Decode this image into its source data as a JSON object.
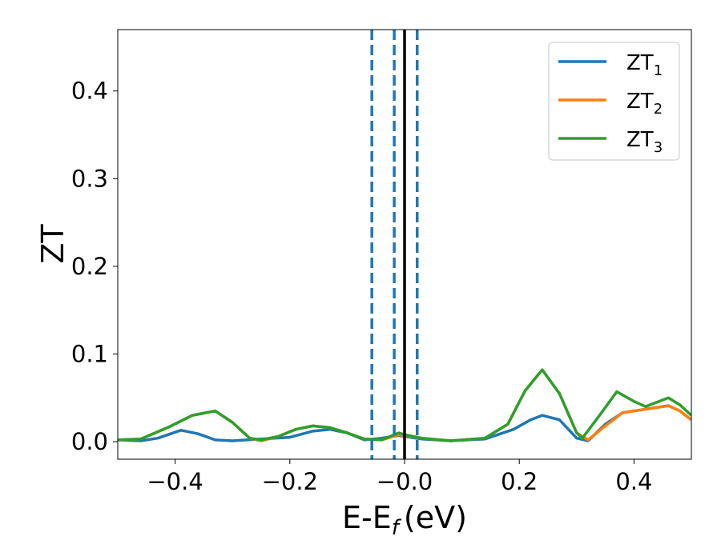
{
  "chart_data": {
    "type": "line",
    "xlabel": "E-E",
    "xlabel_sub": "f",
    "xlabel_unit": "(eV)",
    "ylabel": "ZT",
    "xlim": [
      -0.5,
      0.5
    ],
    "ylim": [
      -0.02,
      0.47
    ],
    "x_ticks": [
      -0.4,
      -0.2,
      0.0,
      0.2,
      0.4
    ],
    "x_tick_labels": [
      "−0.4",
      "−0.2",
      "−0.0",
      "0.2",
      "0.4"
    ],
    "y_ticks": [
      0.0,
      0.1,
      0.2,
      0.3,
      0.4
    ],
    "y_tick_labels": [
      "0.0",
      "0.1",
      "0.2",
      "0.3",
      "0.4"
    ],
    "grid": false,
    "legend_position": "top-right",
    "vertical_lines": [
      {
        "x": -0.057,
        "style": "dashed",
        "color": "#1f77b4"
      },
      {
        "x": -0.018,
        "style": "dashed",
        "color": "#1f77b4"
      },
      {
        "x": 0.0,
        "style": "solid",
        "color": "#000000"
      },
      {
        "x": 0.022,
        "style": "dashed",
        "color": "#1f77b4"
      }
    ],
    "series": [
      {
        "name": "ZT",
        "sub": "1",
        "color": "#1f77b4",
        "x": [
          -0.5,
          -0.46,
          -0.43,
          -0.39,
          -0.36,
          -0.33,
          -0.3,
          -0.25,
          -0.2,
          -0.16,
          -0.13,
          -0.1,
          -0.07,
          -0.04,
          -0.01,
          0.0,
          0.03,
          0.08,
          0.14,
          0.19,
          0.22,
          0.24,
          0.27,
          0.3,
          0.32,
          0.35,
          0.38,
          0.4,
          0.43,
          0.46,
          0.48,
          0.5
        ],
        "y": [
          0.002,
          0.001,
          0.004,
          0.013,
          0.009,
          0.002,
          0.001,
          0.003,
          0.005,
          0.012,
          0.014,
          0.01,
          0.002,
          0.004,
          0.007,
          0.006,
          0.003,
          0.001,
          0.003,
          0.014,
          0.025,
          0.03,
          0.025,
          0.004,
          0.001,
          0.02,
          0.033,
          0.035,
          0.038,
          0.041,
          0.035,
          0.025
        ]
      },
      {
        "name": "ZT",
        "sub": "2",
        "color": "#ff7f0e",
        "x": [
          -0.5,
          -0.46,
          -0.41,
          -0.37,
          -0.33,
          -0.3,
          -0.27,
          -0.25,
          -0.22,
          -0.19,
          -0.16,
          -0.13,
          -0.1,
          -0.07,
          -0.04,
          -0.01,
          0.0,
          0.03,
          0.08,
          0.14,
          0.18,
          0.21,
          0.24,
          0.27,
          0.3,
          0.32,
          0.35,
          0.38,
          0.4,
          0.43,
          0.46,
          0.48,
          0.5
        ],
        "y": [
          0.002,
          0.003,
          0.017,
          0.03,
          0.035,
          0.022,
          0.004,
          0.001,
          0.006,
          0.014,
          0.018,
          0.016,
          0.01,
          0.003,
          0.002,
          0.008,
          0.007,
          0.004,
          0.001,
          0.004,
          0.02,
          0.058,
          0.082,
          0.055,
          0.01,
          0.002,
          0.018,
          0.033,
          0.035,
          0.038,
          0.041,
          0.035,
          0.025
        ]
      },
      {
        "name": "ZT",
        "sub": "3",
        "color": "#2ca02c",
        "x": [
          -0.5,
          -0.46,
          -0.41,
          -0.37,
          -0.33,
          -0.3,
          -0.27,
          -0.25,
          -0.22,
          -0.19,
          -0.16,
          -0.13,
          -0.1,
          -0.07,
          -0.04,
          -0.01,
          0.0,
          0.03,
          0.08,
          0.14,
          0.18,
          0.21,
          0.24,
          0.27,
          0.3,
          0.31,
          0.34,
          0.37,
          0.4,
          0.42,
          0.44,
          0.46,
          0.48,
          0.5
        ],
        "y": [
          0.002,
          0.003,
          0.017,
          0.03,
          0.035,
          0.022,
          0.004,
          0.002,
          0.006,
          0.014,
          0.018,
          0.016,
          0.01,
          0.003,
          0.002,
          0.01,
          0.008,
          0.004,
          0.001,
          0.004,
          0.02,
          0.058,
          0.082,
          0.055,
          0.01,
          0.004,
          0.03,
          0.057,
          0.046,
          0.04,
          0.045,
          0.05,
          0.042,
          0.03
        ]
      }
    ]
  }
}
